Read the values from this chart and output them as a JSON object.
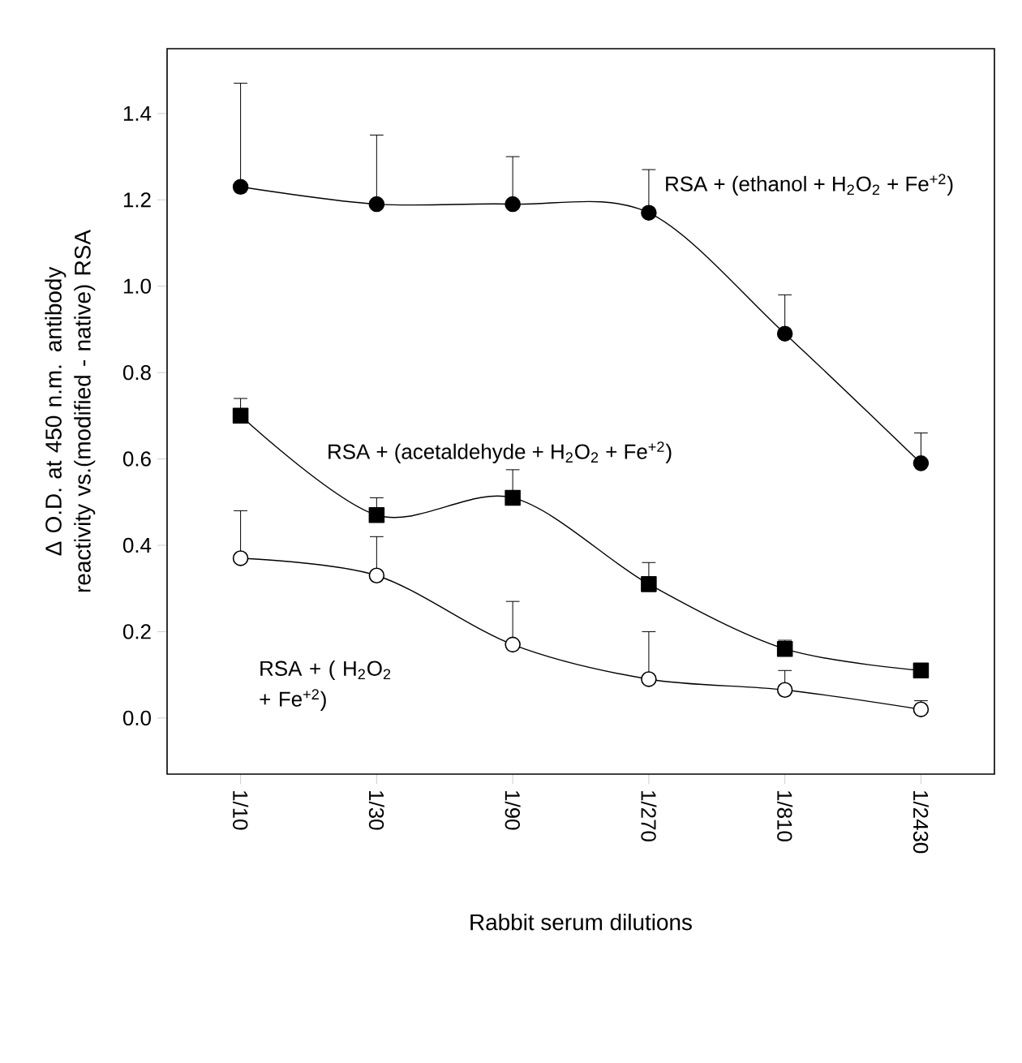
{
  "chart_data": {
    "type": "line",
    "xlabel": "Rabbit serum dilutions",
    "ylabel": "Δ O.D. at 450 n.m. antibody reactivity vs.(modified - native) RSA",
    "categories": [
      "1/10",
      "1/30",
      "1/90",
      "1/270",
      "1/810",
      "1/2430"
    ],
    "ylim": [
      -0.13,
      1.55
    ],
    "yticks": [
      {
        "value": 0,
        "label": "0.0"
      },
      0.2,
      0.4,
      0.6,
      0.8,
      {
        "value": 1,
        "label": "1.0"
      },
      1.2,
      1.4
    ],
    "series": [
      {
        "name": "RSA + (ethanol + H$_{2}$O$_{2}$ + Fe$^{+2}$)",
        "color": "#000000",
        "marker": "circle",
        "values": [
          1.23,
          1.19,
          1.19,
          1.17,
          0.89,
          0.59
        ],
        "errors": [
          [
            1.23,
            1.47
          ],
          [
            1.19,
            1.35
          ],
          [
            1.19,
            1.3
          ],
          [
            1.17,
            1.27
          ],
          [
            0.89,
            0.98
          ],
          [
            0.59,
            0.66
          ]
        ]
      },
      {
        "name": "RSA + (acetaldehyde + H$_{2}$O$_{2}$ + Fe$^{+2}$)",
        "color": "#000000",
        "marker": "square",
        "values": [
          0.7,
          0.47,
          0.51,
          0.31,
          0.16,
          0.11
        ],
        "errors": [
          [
            0.7,
            0.74
          ],
          [
            0.47,
            0.51
          ],
          [
            0.51,
            0.575
          ],
          [
            0.31,
            0.36
          ],
          [
            0.16,
            0.18
          ],
          [
            0.11,
            0.12
          ]
        ]
      },
      {
        "name": "RSA + ( H$_{2}$O$_{2}$ + Fe$^{+2}$)",
        "color": "#000000",
        "marker": "circle",
        "values": [
          0.37,
          0.33,
          0.17,
          0.09,
          0.065,
          0.02
        ],
        "errors": [
          [
            0.37,
            0.48
          ],
          [
            0.33,
            0.42
          ],
          [
            0.17,
            0.27
          ],
          [
            0.09,
            0.2
          ],
          [
            0.065,
            0.11
          ],
          [
            0.02,
            0.04
          ]
        ]
      }
    ]
  }
}
